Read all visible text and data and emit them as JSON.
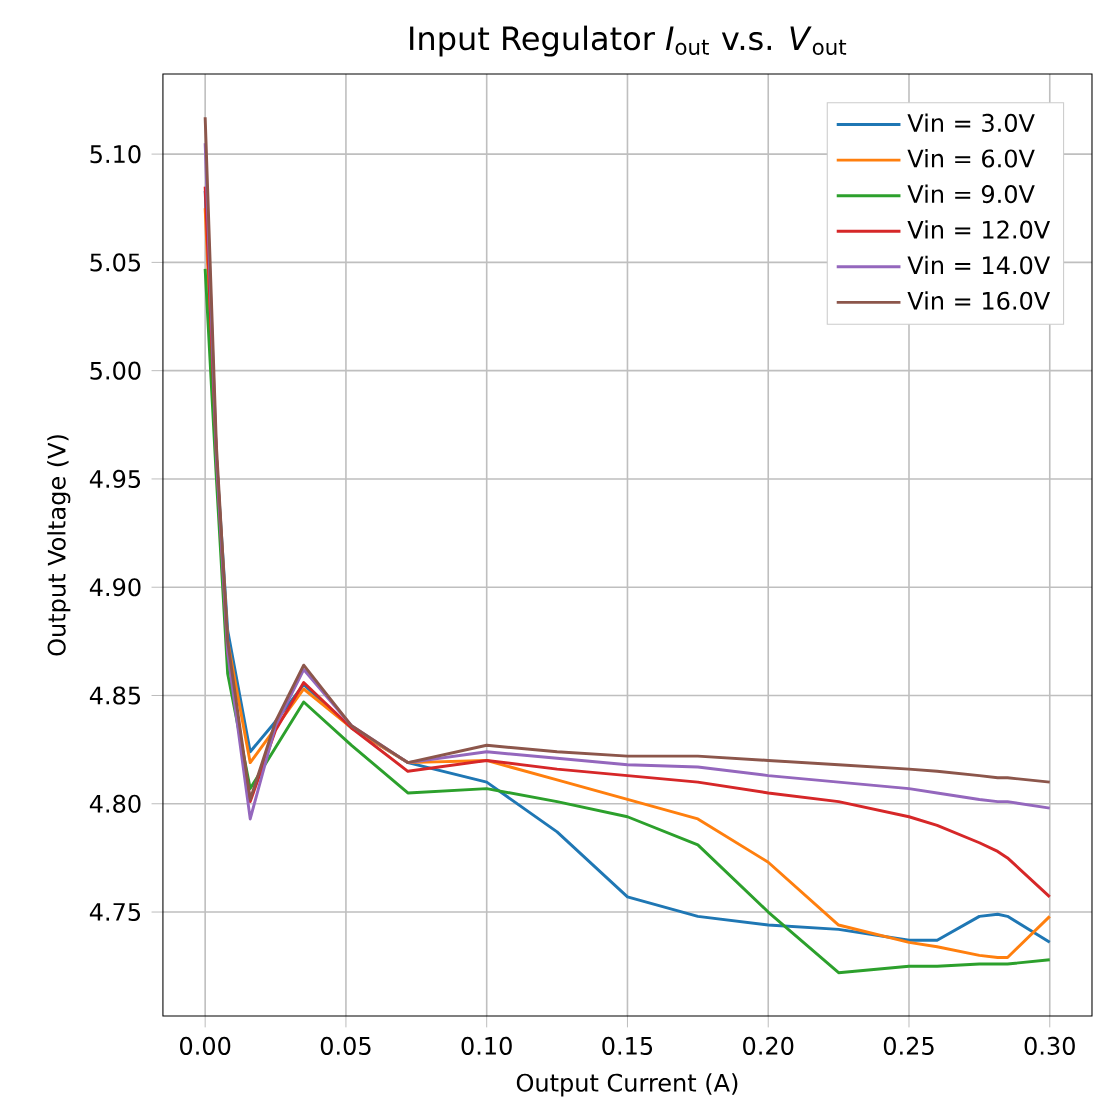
{
  "chart_data": {
    "type": "line",
    "title": "Input Regulator *I*$_{out}$ v.s. *V*$_{out}$",
    "xlabel": "Output Current (A)",
    "ylabel": "Output Voltage (V)",
    "x": [
      0,
      0.004,
      0.008,
      0.016,
      0.025,
      0.035,
      0.052,
      0.072,
      0.1,
      0.125,
      0.15,
      0.175,
      0.2,
      0.225,
      0.25,
      0.26,
      0.275,
      0.2815,
      0.285,
      0.3
    ],
    "series": [
      {
        "name": "Vin = 3.0V",
        "color": "#1f77b4",
        "values": [
          5.083,
          4.96,
          4.88,
          4.824,
          4.838,
          4.855,
          4.835,
          4.819,
          4.81,
          4.787,
          4.757,
          4.748,
          4.744,
          4.742,
          4.737,
          4.737,
          4.748,
          4.749,
          4.748,
          4.736
        ]
      },
      {
        "name": "Vin = 6.0V",
        "color": "#ff7f0e",
        "values": [
          5.075,
          4.96,
          4.875,
          4.819,
          4.835,
          4.853,
          4.835,
          4.819,
          4.82,
          4.811,
          4.802,
          4.793,
          4.773,
          4.744,
          4.736,
          4.734,
          4.73,
          4.729,
          4.729,
          4.748
        ]
      },
      {
        "name": "Vin = 9.0V",
        "color": "#2ca02c",
        "values": [
          5.047,
          4.95,
          4.86,
          4.807,
          4.826,
          4.847,
          4.827,
          4.805,
          4.807,
          4.801,
          4.794,
          4.781,
          4.75,
          4.722,
          4.725,
          4.725,
          4.726,
          4.726,
          4.726,
          4.728
        ]
      },
      {
        "name": "Vin = 12.0V",
        "color": "#d62728",
        "values": [
          5.085,
          4.96,
          4.87,
          4.801,
          4.834,
          4.856,
          4.835,
          4.815,
          4.82,
          4.816,
          4.813,
          4.81,
          4.805,
          4.801,
          4.794,
          4.79,
          4.782,
          4.778,
          4.775,
          4.757
        ]
      },
      {
        "name": "Vin = 14.0V",
        "color": "#9467bd",
        "values": [
          5.105,
          4.96,
          4.87,
          4.793,
          4.836,
          4.862,
          4.836,
          4.819,
          4.824,
          4.821,
          4.818,
          4.817,
          4.813,
          4.81,
          4.807,
          4.805,
          4.802,
          4.801,
          4.801,
          4.798
        ]
      },
      {
        "name": "Vin = 16.0V",
        "color": "#8c564b",
        "values": [
          5.117,
          4.965,
          4.875,
          4.802,
          4.838,
          4.864,
          4.836,
          4.819,
          4.827,
          4.824,
          4.822,
          4.822,
          4.82,
          4.818,
          4.816,
          4.815,
          4.813,
          4.812,
          4.812,
          4.81
        ]
      }
    ],
    "xlim": [
      -0.015,
      0.315
    ],
    "ylim": [
      4.702,
      5.137
    ],
    "xticks": [
      {
        "value": 0,
        "label": "0.00"
      },
      {
        "value": 0.05,
        "label": "0.05"
      },
      {
        "value": 0.1,
        "label": "0.10"
      },
      {
        "value": 0.15,
        "label": "0.15"
      },
      {
        "value": 0.2,
        "label": "0.20"
      },
      {
        "value": 0.25,
        "label": "0.25"
      },
      {
        "value": 0.3,
        "label": "0.30"
      }
    ],
    "yticks": [
      {
        "value": 4.75,
        "label": "4.75"
      },
      {
        "value": 4.8,
        "label": "4.80"
      },
      {
        "value": 4.85,
        "label": "4.85"
      },
      {
        "value": 4.9,
        "label": "4.90"
      },
      {
        "value": 4.95,
        "label": "4.95"
      },
      {
        "value": 5.0,
        "label": "5.00"
      },
      {
        "value": 5.05,
        "label": "5.05"
      },
      {
        "value": 5.1,
        "label": "5.10"
      }
    ],
    "grid": true,
    "legend": "top right"
  }
}
